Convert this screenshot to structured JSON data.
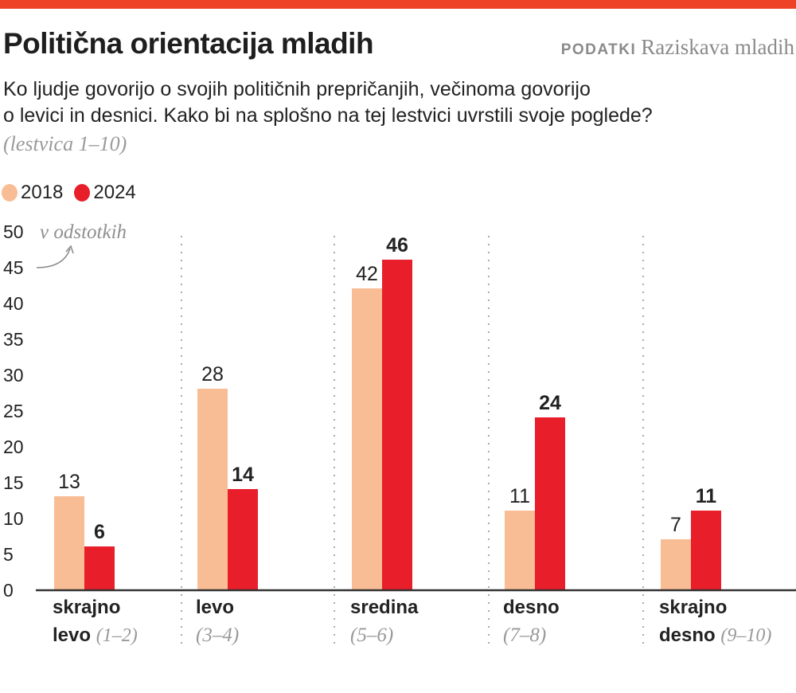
{
  "header": {
    "title": "Politična orientacija mladih",
    "source_label": "PODATKI",
    "source_value": "Raziskava mladih",
    "subtitle_line1": "Ko ljudje govorijo o svojih političnih prepričanjih, večinoma govorijo",
    "subtitle_line2": "o levici in desnici. Kako bi na splošno na tej lestvici uvrstili svoje poglede?",
    "note": "(lestvica 1–10)"
  },
  "colors": {
    "accent_bar": "#ee4326",
    "series_2018": "#f9bd96",
    "series_2024": "#e81e2a"
  },
  "chart_data": {
    "type": "bar",
    "unit_label": "v odstotkih",
    "ylim": [
      0,
      50
    ],
    "yticks": [
      0,
      5,
      10,
      15,
      20,
      25,
      30,
      35,
      40,
      45,
      50
    ],
    "legend_placement": "top-left",
    "grid": false,
    "categories": [
      {
        "name": "skrajno",
        "name2": "levo",
        "range": "(1–2)"
      },
      {
        "name": "levo",
        "name2": "",
        "range": "(3–4)"
      },
      {
        "name": "sredina",
        "name2": "",
        "range": "(5–6)"
      },
      {
        "name": "desno",
        "name2": "",
        "range": "(7–8)"
      },
      {
        "name": "skrajno",
        "name2": "desno",
        "range": "(9–10)"
      }
    ],
    "series": [
      {
        "name": "2018",
        "values": [
          13,
          28,
          42,
          11,
          7
        ]
      },
      {
        "name": "2024",
        "values": [
          6,
          14,
          46,
          24,
          11
        ]
      }
    ]
  }
}
